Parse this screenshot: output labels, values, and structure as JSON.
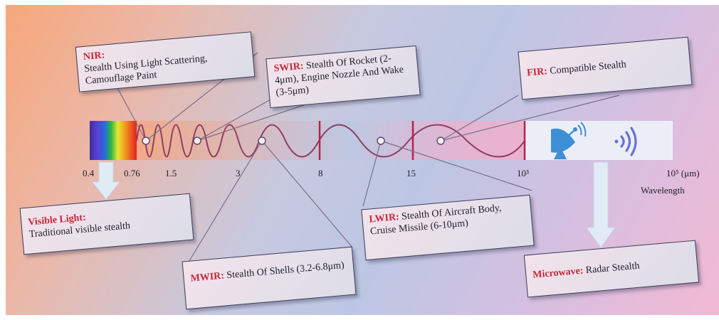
{
  "axis": {
    "ticks": [
      "0.4",
      "0.76",
      "1.5",
      "3",
      "8",
      "15",
      "10³",
      "10⁵ (μm)"
    ],
    "title": "Wavelength"
  },
  "callouts": {
    "nir": {
      "head": "NIR:",
      "body": "Stealth Using Light Scattering, Camouflage Paint"
    },
    "swir": {
      "head": "SWIR:",
      "body": "Stealth Of Rocket (2-4μm), Engine Nozzle And Wake (3-5μm)"
    },
    "fir": {
      "head": "FIR:",
      "body": "Compatible Stealth"
    },
    "visible": {
      "head": "Visible Light:",
      "body": "Traditional visible stealth"
    },
    "lwir": {
      "head": "LWIR:",
      "body": "Stealth Of Aircraft Body, Cruise Missile (6-10μm)"
    },
    "mwir": {
      "head": "MWIR:",
      "body": "Stealth Of Shells (3.2-6.8μm)"
    },
    "microwave": {
      "head": "Microwave:",
      "body": "Radar Stealth"
    }
  },
  "colors": {
    "highlight": "#c7253a",
    "wave": "#8e3e63",
    "divider": "#b5234a",
    "icon": "#3d8fd6"
  },
  "icons": [
    "radar-dish-icon",
    "signal-waves-icon"
  ]
}
